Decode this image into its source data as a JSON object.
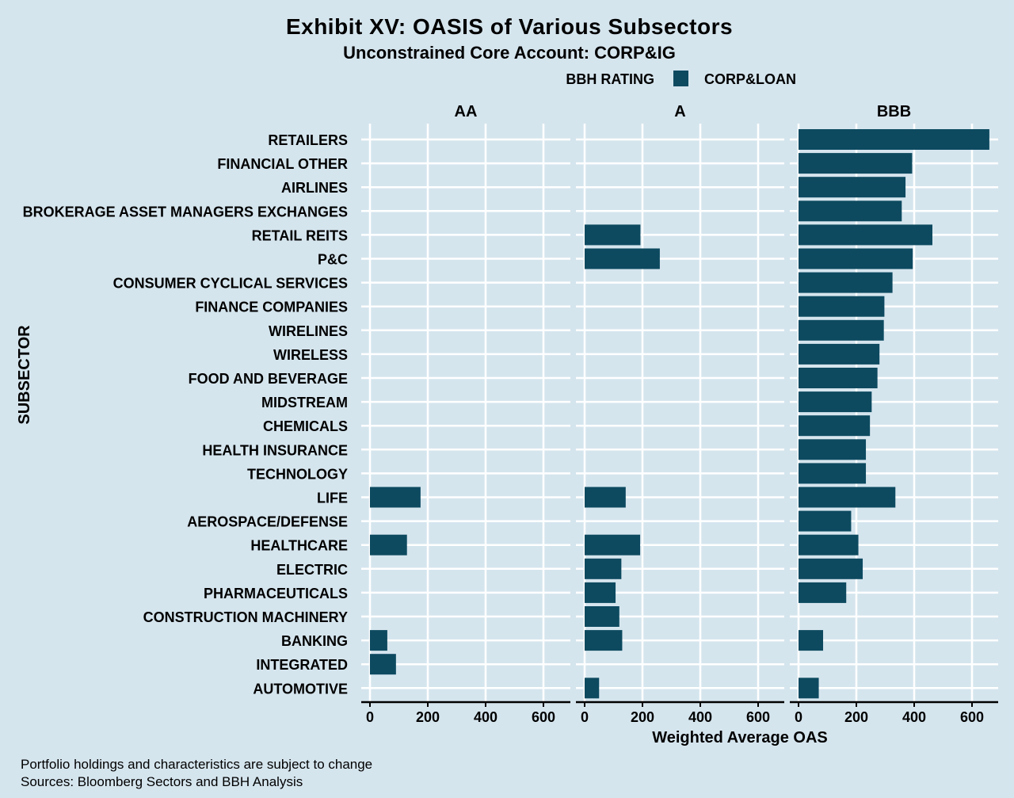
{
  "colors": {
    "background": "#d5e5ee",
    "bar": "#0d4a60",
    "grid": "#ffffff",
    "axis": "#000000"
  },
  "chart_data": {
    "type": "bar",
    "orientation": "horizontal",
    "title": "Exhibit XV: OASIS of Various Subsectors",
    "subtitle": "Unconstrained Core Account: CORP&IG",
    "legend": {
      "title": "BBH RATING",
      "entries": [
        "CORP&LOAN"
      ]
    },
    "ylabel": "SUBSECTOR",
    "xlabel": "Weighted Average OAS",
    "xlim": [
      0,
      700
    ],
    "xticks": [
      0,
      200,
      400,
      600
    ],
    "categories": [
      "RETAILERS",
      "FINANCIAL OTHER",
      "AIRLINES",
      "BROKERAGE ASSET MANAGERS EXCHANGES",
      "RETAIL REITS",
      "P&C",
      "CONSUMER CYCLICAL SERVICES",
      "FINANCE COMPANIES",
      "WIRELINES",
      "WIRELESS",
      "FOOD AND BEVERAGE",
      "MIDSTREAM",
      "CHEMICALS",
      "HEALTH INSURANCE",
      "TECHNOLOGY",
      "LIFE",
      "AEROSPACE/DEFENSE",
      "HEALTHCARE",
      "ELECTRIC",
      "PHARMACEUTICALS",
      "CONSTRUCTION MACHINERY",
      "BANKING",
      "INTEGRATED",
      "AUTOMOTIVE"
    ],
    "facets": [
      {
        "name": "AA",
        "values": [
          null,
          null,
          null,
          null,
          null,
          null,
          null,
          null,
          null,
          null,
          null,
          null,
          null,
          null,
          null,
          175,
          null,
          128,
          null,
          null,
          null,
          60,
          90,
          null
        ]
      },
      {
        "name": "A",
        "values": [
          null,
          null,
          null,
          null,
          193,
          260,
          null,
          null,
          null,
          null,
          null,
          null,
          null,
          null,
          null,
          142,
          null,
          192,
          127,
          107,
          120,
          130,
          null,
          50
        ]
      },
      {
        "name": "BBB",
        "values": [
          660,
          393,
          370,
          357,
          463,
          395,
          325,
          297,
          295,
          280,
          273,
          253,
          247,
          233,
          233,
          335,
          182,
          207,
          222,
          165,
          null,
          85,
          null,
          70
        ]
      }
    ]
  },
  "footnotes": [
    "Portfolio holdings and characteristics are subject to change",
    "Sources: Bloomberg Sectors and BBH Analysis"
  ]
}
